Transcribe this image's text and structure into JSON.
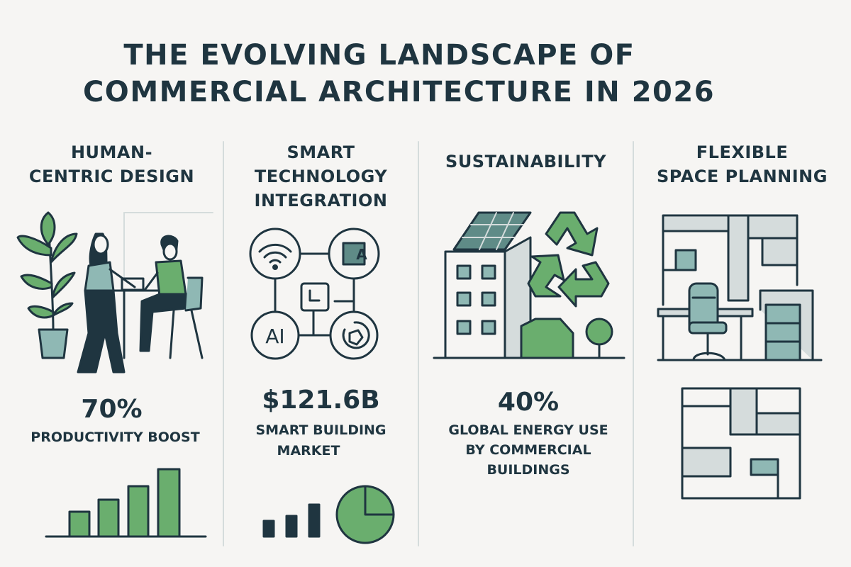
{
  "title": {
    "line1": "THE EVOLVING LANDSCAPE OF",
    "line2": "COMMERCIAL ARCHITECTURE IN 2026"
  },
  "colors": {
    "background": "#f6f5f3",
    "ink": "#1f3540",
    "green": "#6aae6e",
    "teal": "#8fb8b4",
    "light_gray": "#d5dcdc"
  },
  "columns": [
    {
      "heading_lines": [
        "HUMAN-",
        "CENTRIC DESIGN"
      ],
      "stat": "70%",
      "desc_lines": [
        "PRODUCTIVITY BOOST"
      ],
      "illustration": "people-meeting-with-plant",
      "mini_chart": "rising-bar-chart-icon"
    },
    {
      "heading_lines": [
        "SMART",
        "TECHNOLOGY",
        "INTEGRATION"
      ],
      "stat": "$121.6B",
      "desc_lines": [
        "SMART BUILDING",
        "MARKET"
      ],
      "illustration": "connected-devices-network",
      "network_labels": [
        "A",
        "AI"
      ],
      "mini_chart": "bar-and-pie-chart-icon"
    },
    {
      "heading_lines": [
        "SUSTAINABILITY"
      ],
      "stat": "40%",
      "desc_lines": [
        "GLOBAL ENERGY USE",
        "BY COMMERCIAL",
        "BUILDINGS"
      ],
      "illustration": "solar-building-with-recycle-symbol"
    },
    {
      "heading_lines": [
        "FLEXIBLE",
        "SPACE PLANNING"
      ],
      "illustration": "office-layout-and-floor-plan"
    }
  ]
}
